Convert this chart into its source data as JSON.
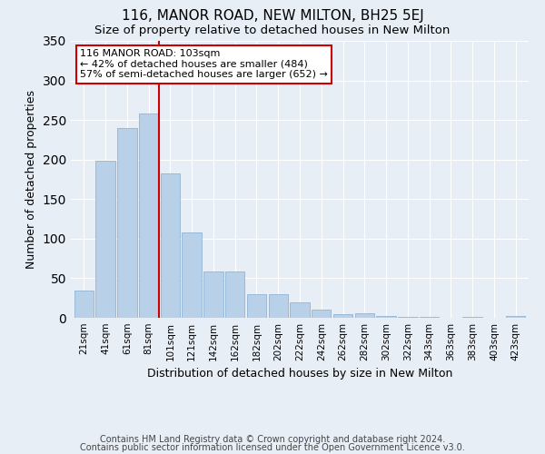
{
  "title": "116, MANOR ROAD, NEW MILTON, BH25 5EJ",
  "subtitle": "Size of property relative to detached houses in New Milton",
  "xlabel": "Distribution of detached houses by size in New Milton",
  "ylabel": "Number of detached properties",
  "footnote1": "Contains HM Land Registry data © Crown copyright and database right 2024.",
  "footnote2": "Contains public sector information licensed under the Open Government Licence v3.0.",
  "bar_labels": [
    "21sqm",
    "41sqm",
    "61sqm",
    "81sqm",
    "101sqm",
    "121sqm",
    "142sqm",
    "162sqm",
    "182sqm",
    "202sqm",
    "222sqm",
    "242sqm",
    "262sqm",
    "282sqm",
    "302sqm",
    "322sqm",
    "343sqm",
    "363sqm",
    "383sqm",
    "403sqm",
    "423sqm"
  ],
  "bar_values": [
    35,
    198,
    240,
    258,
    183,
    108,
    59,
    59,
    30,
    30,
    20,
    10,
    5,
    6,
    2,
    1,
    1,
    0,
    1,
    0,
    2
  ],
  "bar_color": "#b8d0e8",
  "bar_edge_color": "#90b4d4",
  "vline_color": "#cc0000",
  "annotation_text": "116 MANOR ROAD: 103sqm\n← 42% of detached houses are smaller (484)\n57% of semi-detached houses are larger (652) →",
  "annotation_box_color": "#ffffff",
  "annotation_box_edge": "#cc0000",
  "ylim": [
    0,
    350
  ],
  "yticks": [
    0,
    50,
    100,
    150,
    200,
    250,
    300,
    350
  ],
  "bg_color": "#e8eef6",
  "title_fontsize": 11,
  "subtitle_fontsize": 9.5,
  "axis_label_fontsize": 9,
  "tick_fontsize": 7.5,
  "footnote_fontsize": 7
}
